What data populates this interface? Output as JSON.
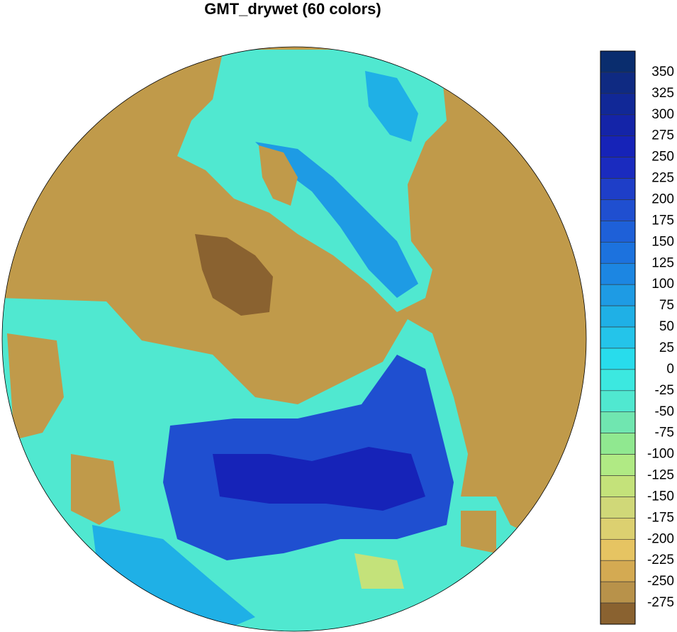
{
  "title": "GMT_drywet (60 colors)",
  "colorbar": {
    "labels": [
      350,
      325,
      300,
      275,
      250,
      225,
      200,
      175,
      150,
      125,
      100,
      75,
      50,
      25,
      0,
      -25,
      -50,
      -75,
      -100,
      -125,
      -150,
      -175,
      -200,
      -225,
      -250,
      -275
    ],
    "colors": [
      "#0a2d6e",
      "#0f2a82",
      "#112897",
      "#1424a8",
      "#1623b8",
      "#1a2bbf",
      "#1e3ec8",
      "#1f4fd0",
      "#1e60d8",
      "#1c72de",
      "#1c86e2",
      "#1e9be4",
      "#1fb0e6",
      "#24c4ea",
      "#28dcec",
      "#3ce8e0",
      "#50e8d0",
      "#70e6b0",
      "#90e890",
      "#b0ea84",
      "#c4e27a",
      "#d0d878",
      "#dcd070",
      "#e6c462",
      "#d4aa52",
      "#b8924a",
      "#8a6230"
    ]
  }
}
